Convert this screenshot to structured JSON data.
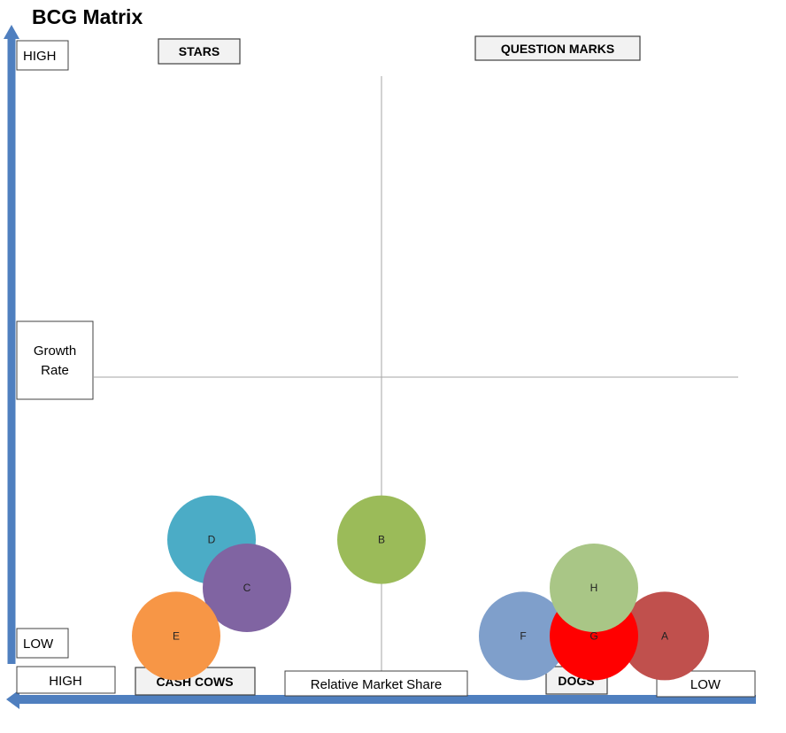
{
  "title": "BCG Matrix",
  "axis_labels": {
    "y_high": "HIGH",
    "y_low": "LOW",
    "y_name": [
      "Growth",
      "Rate"
    ],
    "x_high": "HIGH",
    "x_low": "LOW",
    "x_name": "Relative Market Share"
  },
  "quadrants": {
    "stars": "STARS",
    "question_marks": "QUESTION MARKS",
    "cash_cows": "CASH COWS",
    "dogs": "DOGS"
  },
  "colors": {
    "axis_arrow": "#4F7FBF",
    "divider": "#A6A6A6",
    "quadrant_label_fill": "#F2F2F2"
  },
  "chart_data": {
    "type": "scatter",
    "title": "BCG Matrix",
    "xlabel": "Relative Market Share",
    "ylabel": "Growth Rate",
    "x_direction": "HIGH to LOW (left to right)",
    "y_direction": "LOW to HIGH (bottom to top)",
    "xlim": [
      0,
      10
    ],
    "ylim": [
      0,
      10
    ],
    "dividers": {
      "x": 5,
      "y": 5
    },
    "grid": false,
    "points": [
      {
        "label": "D",
        "x": 2.6,
        "y": 2.3,
        "color": "#4BACC6"
      },
      {
        "label": "C",
        "x": 3.1,
        "y": 1.5,
        "color": "#8064A2"
      },
      {
        "label": "E",
        "x": 2.1,
        "y": 0.7,
        "color": "#F79646"
      },
      {
        "label": "B",
        "x": 5.0,
        "y": 2.3,
        "color": "#9BBB59"
      },
      {
        "label": "F",
        "x": 7.0,
        "y": 0.7,
        "color": "#7F9FCB"
      },
      {
        "label": "A",
        "x": 9.0,
        "y": 0.7,
        "color": "#C0504D"
      },
      {
        "label": "G",
        "x": 8.0,
        "y": 0.7,
        "color": "#FF0000"
      },
      {
        "label": "H",
        "x": 8.0,
        "y": 1.5,
        "color": "#A9C686"
      }
    ]
  }
}
